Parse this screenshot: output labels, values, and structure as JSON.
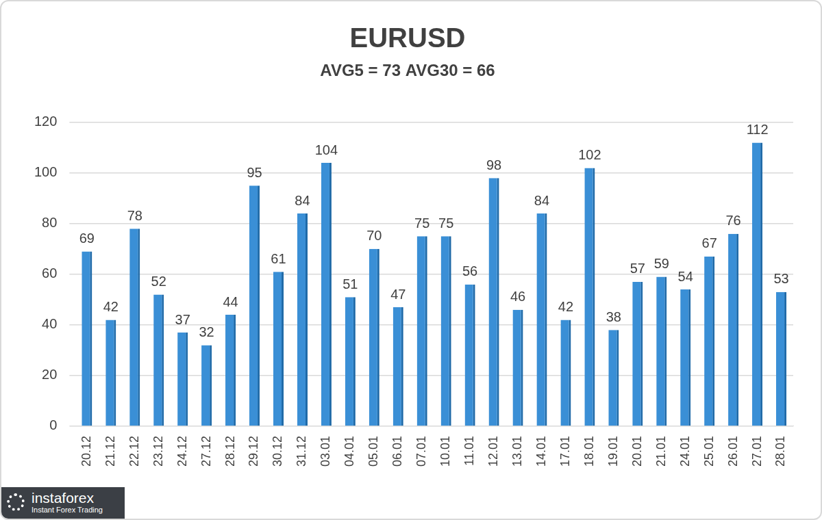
{
  "chart_data": {
    "type": "bar",
    "title": "EURUSD",
    "subtitle": "AVG5 = 73 AVG30 = 66",
    "categories": [
      "20.12",
      "21.12",
      "22.12",
      "23.12",
      "24.12",
      "27.12",
      "28.12",
      "29.12",
      "30.12",
      "31.12",
      "03.01",
      "04.01",
      "05.01",
      "06.01",
      "07.01",
      "10.01",
      "11.01",
      "12.01",
      "13.01",
      "14.01",
      "17.01",
      "18.01",
      "19.01",
      "20.01",
      "21.01",
      "24.01",
      "25.01",
      "26.01",
      "27.01",
      "28.01"
    ],
    "values": [
      69,
      42,
      78,
      52,
      37,
      32,
      44,
      95,
      61,
      84,
      104,
      51,
      70,
      47,
      75,
      75,
      56,
      98,
      46,
      84,
      42,
      102,
      38,
      57,
      59,
      54,
      67,
      76,
      112,
      53
    ],
    "color": "#3a8fd6",
    "ylim": [
      0,
      120
    ],
    "yticks": [
      0,
      20,
      40,
      60,
      80,
      100,
      120
    ],
    "grid": true,
    "data_labels": true,
    "annotations": [
      "instaforex",
      "Instant Forex Trading"
    ]
  }
}
